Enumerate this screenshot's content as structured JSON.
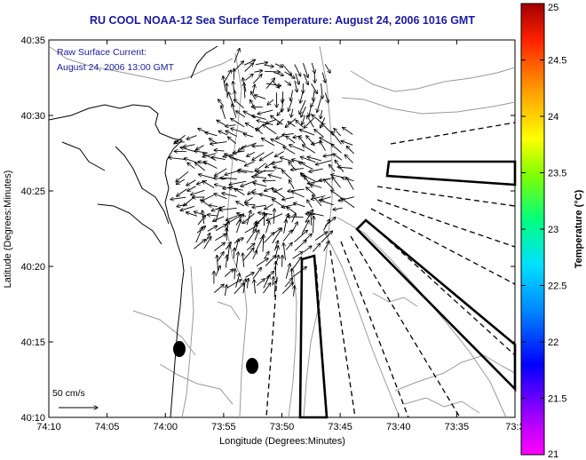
{
  "title": "RU COOL  NOAA-12  Sea Surface Temperature:  August 24, 2006 1016 GMT",
  "annotation": {
    "line1": "Raw Surface Current:",
    "line2": "August 24, 2006 13:00 GMT"
  },
  "x_axis": {
    "label": "Longitude (Degrees:Minutes)",
    "ticks": [
      "74:10",
      "74:05",
      "74:00",
      "73:55",
      "73:50",
      "73:45",
      "73:40",
      "73:35",
      "73:3"
    ]
  },
  "y_axis": {
    "label": "Latitude (Degrees:Minutes)",
    "ticks": [
      "40:35",
      "40:30",
      "40:25",
      "40:20",
      "40:15",
      "40:10"
    ]
  },
  "colorbar": {
    "label": "Temperature (°C)",
    "ticks": [
      "25",
      "24.5",
      "24",
      "23.5",
      "23",
      "22.5",
      "22",
      "21.5",
      "21"
    ],
    "min": 21,
    "max": 25
  },
  "scale_arrow": {
    "label": "50 cm/s"
  },
  "colors": {
    "title": "#1a1aa0",
    "annotation": "#1a1aa0",
    "contour": "#9a9a9a"
  }
}
